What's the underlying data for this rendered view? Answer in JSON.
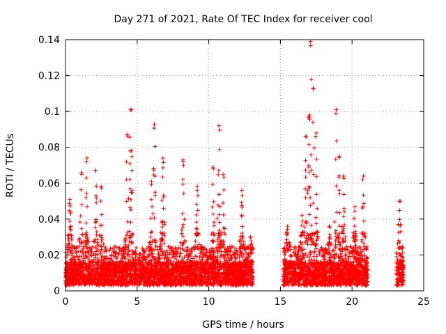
{
  "chart_data": {
    "type": "scatter",
    "title": "Day 271 of 2021, Rate Of TEC Index for receiver cool",
    "xlabel": "GPS time / hours",
    "ylabel": "ROTI / TECUs",
    "xlim": [
      0,
      25
    ],
    "ylim": [
      0,
      0.14
    ],
    "x_ticks": [
      0,
      5,
      10,
      15,
      20,
      25
    ],
    "y_ticks": [
      0,
      0.02,
      0.04,
      0.06,
      0.08,
      0.1,
      0.12,
      0.14
    ],
    "x_tick_labels": [
      "0",
      "5",
      "10",
      "15",
      "20",
      "25"
    ],
    "y_tick_labels": [
      "0",
      "0.02",
      "0.04",
      "0.06",
      "0.08",
      "0.1",
      "0.12",
      "0.14"
    ],
    "grid": true,
    "marker": "+",
    "color": "#ff0000",
    "segments": [
      {
        "x_start": 0.0,
        "x_end": 13.1
      },
      {
        "x_start": 15.2,
        "x_end": 21.1
      },
      {
        "x_start": 23.1,
        "x_end": 23.6
      }
    ],
    "peaks": [
      {
        "x": 0.3,
        "y": 0.051
      },
      {
        "x": 1.1,
        "y": 0.066
      },
      {
        "x": 1.5,
        "y": 0.074
      },
      {
        "x": 2.1,
        "y": 0.067
      },
      {
        "x": 2.5,
        "y": 0.058
      },
      {
        "x": 4.3,
        "y": 0.087
      },
      {
        "x": 4.55,
        "y": 0.101
      },
      {
        "x": 4.6,
        "y": 0.078
      },
      {
        "x": 6.0,
        "y": 0.061
      },
      {
        "x": 6.2,
        "y": 0.093
      },
      {
        "x": 6.8,
        "y": 0.074
      },
      {
        "x": 8.2,
        "y": 0.072
      },
      {
        "x": 9.2,
        "y": 0.056
      },
      {
        "x": 10.3,
        "y": 0.069
      },
      {
        "x": 10.7,
        "y": 0.092
      },
      {
        "x": 11.0,
        "y": 0.065
      },
      {
        "x": 12.3,
        "y": 0.056
      },
      {
        "x": 12.9,
        "y": 0.03
      },
      {
        "x": 15.5,
        "y": 0.036
      },
      {
        "x": 16.5,
        "y": 0.042
      },
      {
        "x": 16.8,
        "y": 0.086
      },
      {
        "x": 17.0,
        "y": 0.097
      },
      {
        "x": 17.1,
        "y": 0.139
      },
      {
        "x": 17.3,
        "y": 0.113
      },
      {
        "x": 17.5,
        "y": 0.088
      },
      {
        "x": 18.4,
        "y": 0.036
      },
      {
        "x": 18.9,
        "y": 0.101
      },
      {
        "x": 19.1,
        "y": 0.075
      },
      {
        "x": 19.4,
        "y": 0.064
      },
      {
        "x": 20.2,
        "y": 0.047
      },
      {
        "x": 20.8,
        "y": 0.064
      },
      {
        "x": 23.3,
        "y": 0.05
      }
    ]
  }
}
